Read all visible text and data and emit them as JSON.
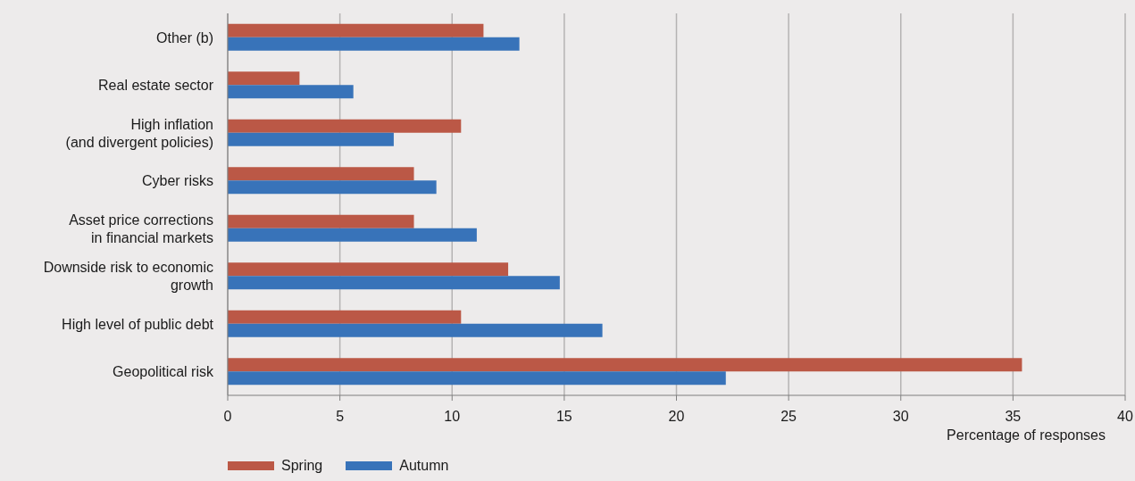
{
  "chart_data": {
    "type": "bar",
    "orientation": "horizontal",
    "xlabel": "Percentage of responses",
    "categories": [
      "Other (b)",
      "Real estate sector",
      "High inflation\n(and divergent policies)",
      "Cyber risks",
      "Asset price corrections\nin financial markets",
      "Downside risk to economic\ngrowth",
      "High level of public debt",
      "Geopolitical risk"
    ],
    "series": [
      {
        "name": "Spring",
        "color": "#bb5846",
        "values": [
          11.4,
          3.2,
          10.4,
          8.3,
          8.3,
          12.5,
          10.4,
          35.4
        ]
      },
      {
        "name": "Autumn",
        "color": "#3873b9",
        "values": [
          13.0,
          5.6,
          7.4,
          9.3,
          11.1,
          14.8,
          16.7,
          22.2
        ]
      }
    ],
    "xlim": [
      0,
      40
    ],
    "xticks": [
      0,
      5,
      10,
      15,
      20,
      25,
      30,
      35,
      40
    ],
    "grid": "x",
    "legend": "bottom left"
  }
}
